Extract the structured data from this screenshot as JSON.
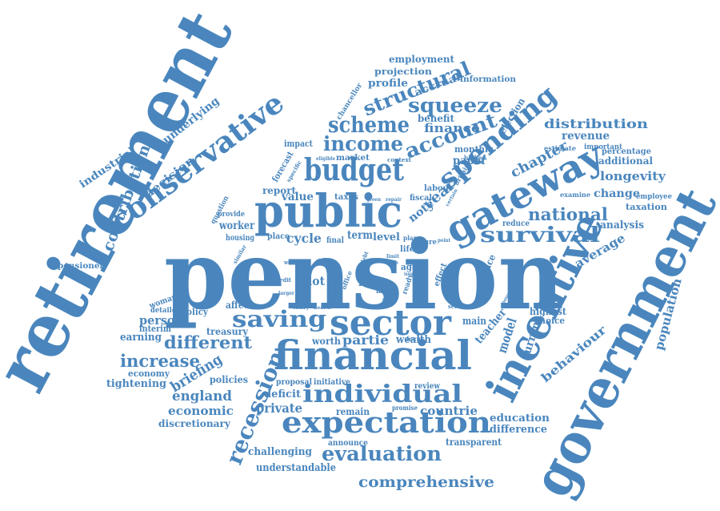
{
  "word_cloud": {
    "color": "#4a86bd",
    "background": "#ffffff",
    "words": {
      "pension": "pension",
      "retirement": "retirement",
      "government": "government",
      "incentive": "incentive",
      "public": "public",
      "financial": "financial",
      "sector": "sector",
      "gateway": "gateway",
      "conservative": "conservative",
      "budget": "budget",
      "spending": "spending",
      "expectation": "expectation",
      "individual": "individual",
      "saving": "saving",
      "recession": "recession",
      "scheme": "scheme",
      "income": "income",
      "account": "account",
      "structural": "structural",
      "squeeze": "squeeze",
      "survival": "survival",
      "national": "national",
      "evaluation": "evaluation",
      "comprehensive": "comprehensive",
      "contribution": "contribution",
      "decision": "decision",
      "underlying": "underlying",
      "industrial": "industrial",
      "different": "different",
      "increase": "increase",
      "briefing": "briefing",
      "person": "person",
      "earning": "earning",
      "economy": "economy",
      "tightening": "tightening",
      "policies": "policies",
      "england": "england",
      "economic": "economic",
      "discretionary": "discretionary",
      "private": "private",
      "deficit": "deficit",
      "challenging": "challenging",
      "understandable": "understandable",
      "announce": "announce",
      "transparent": "transparent",
      "difference": "difference",
      "education": "education",
      "countrie": "countrie",
      "remain": "remain",
      "promise": "promise",
      "review": "review",
      "initiative": "initiative",
      "proposal": "proposal",
      "wealth": "wealth",
      "partie": "partie",
      "worth": "worth",
      "model": "model",
      "teacher": "teacher",
      "current": "current",
      "behaviour": "behaviour",
      "population": "population",
      "average": "average",
      "highest": "highest",
      "choice": "choice",
      "main": "main",
      "distribution": "distribution",
      "revenue": "revenue",
      "additional": "additional",
      "longevity": "longevity",
      "change": "change",
      "analysis": "analysis",
      "taxation": "taxation",
      "percentage": "percentage",
      "important": "important",
      "employee": "employee",
      "chapter": "chapter",
      "estimate": "estimate",
      "examine": "examine",
      "reduce": "reduce",
      "employment": "employment",
      "projection": "projection",
      "profile": "profile",
      "accrual": "accrual",
      "information": "information",
      "benefit": "benefit",
      "finance": "finance",
      "election": "election",
      "chancellor": "chancellor",
      "monthly": "monthly",
      "paper": "paper",
      "britain": "britain",
      "labour": "labour",
      "fiscal": "fiscal",
      "year": "year",
      "note": "note",
      "impact": "impact",
      "market": "market",
      "context": "context",
      "eligible": "eligible",
      "forecast": "forecast",
      "specific": "specific",
      "report": "report",
      "value": "value",
      "taxes": "taxes",
      "green": "green",
      "repair": "repair",
      "certain": "certain",
      "question": "question",
      "provide": "provide",
      "worker": "worker",
      "housing": "housing",
      "place": "place",
      "cycle": "cycle",
      "final": "final",
      "term": "term",
      "level": "level",
      "plan": "plan",
      "future": "future",
      "point": "point",
      "limit": "limit",
      "rule": "rule",
      "life": "life",
      "aged": "aged",
      "fund": "fund",
      "rate": "rate",
      "more": "more",
      "result": "result",
      "credit": "credit",
      "pilot": "pilot",
      "world": "world",
      "show": "show",
      "larger": "larger",
      "essay": "essay",
      "office": "office",
      "debt": "debt",
      "ready": "ready",
      "social": "social",
      "effect": "effect",
      "chance": "chance",
      "largest": "largest",
      "series": "series",
      "pound": "pound",
      "salary": "salary",
      "health": "health",
      "issue": "issue",
      "woman": "woman",
      "detailed": "detailed",
      "policy": "policy",
      "affect": "affect",
      "interim": "interim",
      "treasury": "treasury",
      "practice": "practice",
      "similar": "similar",
      "pensioner": "pensioner",
      "focus": "focus",
      "higher": "higher"
    }
  }
}
